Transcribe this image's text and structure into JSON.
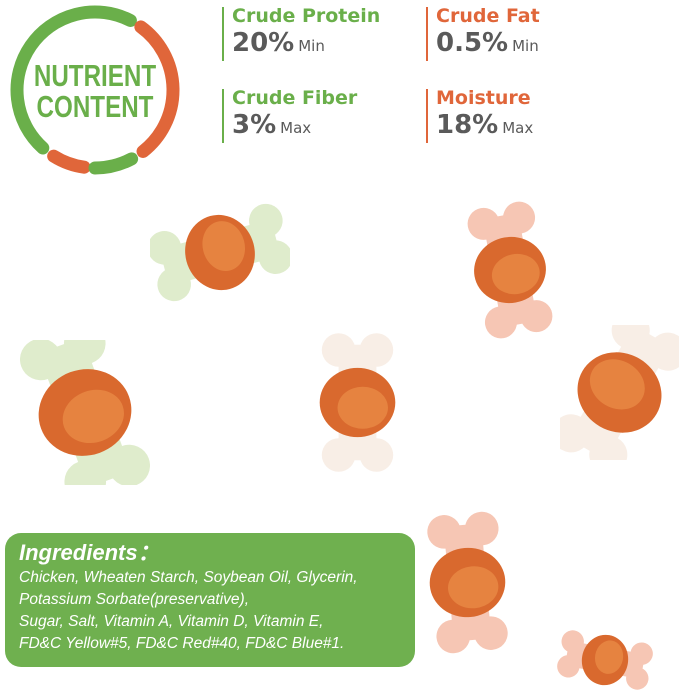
{
  "badge": {
    "line1": "NUTRIENT",
    "line2": "CONTENT"
  },
  "colors": {
    "green": "#6aaf4a",
    "orange": "#e0663a",
    "value_gray": "#5a5a5a",
    "ingredients_bg": "#6fb04f"
  },
  "nutrients": [
    {
      "label": "Crude Protein",
      "value": "20%",
      "qualifier": "Min"
    },
    {
      "label": "Crude Fat",
      "value": "0.5%",
      "qualifier": "Min"
    },
    {
      "label": "Crude Fiber",
      "value": "3%",
      "qualifier": "Max"
    },
    {
      "label": "Moisture",
      "value": "18%",
      "qualifier": "Max"
    }
  ],
  "ingredients": {
    "title": "Ingredients：",
    "lines": [
      "Chicken, Wheaten Starch, Soybean Oil, Glycerin,",
      "Potassium Sorbate(preservative),",
      "Sugar,  Salt, Vitamin A, Vitamin D, Vitamin E,",
      "FD&C Yellow#5, FD&C Red#40, FD&C Blue#1."
    ]
  }
}
